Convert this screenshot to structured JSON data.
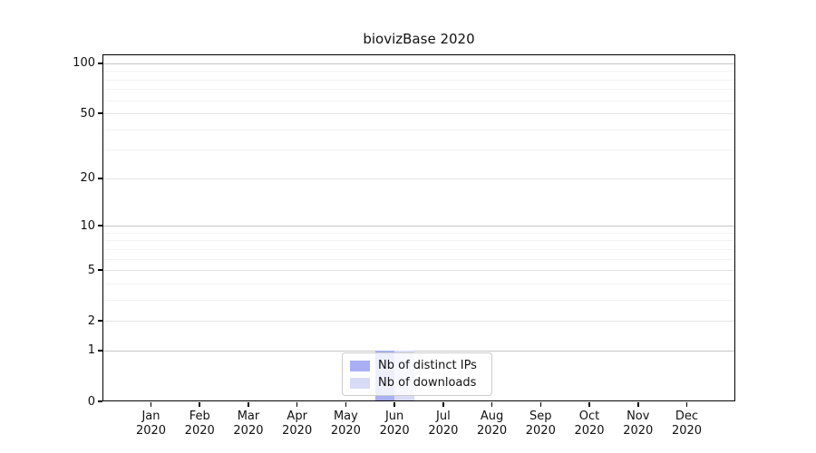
{
  "chart_data": {
    "type": "bar",
    "title": "biovizBase 2020",
    "categories": [
      "Jan",
      "Feb",
      "Mar",
      "Apr",
      "May",
      "Jun",
      "Jul",
      "Aug",
      "Sep",
      "Oct",
      "Nov",
      "Dec"
    ],
    "category_year": "2020",
    "series": [
      {
        "name": "Nb of distinct IPs",
        "color": "#a9aff2",
        "values": [
          0,
          0,
          0,
          0,
          0,
          1,
          0,
          0,
          0,
          0,
          0,
          0
        ]
      },
      {
        "name": "Nb of downloads",
        "color": "#d8dbf8",
        "values": [
          0,
          0,
          0,
          0,
          0,
          1,
          0,
          0,
          0,
          0,
          0,
          0
        ]
      }
    ],
    "y_axis": {
      "scale": "log1p",
      "major_ticks": [
        0,
        1,
        2,
        5,
        10,
        20,
        50,
        100
      ],
      "decade_gridlines": [
        1,
        10,
        100
      ],
      "mid_gridlines": [
        2,
        5,
        20,
        50
      ],
      "minor_gridlines": [
        3,
        4,
        6,
        7,
        8,
        9,
        30,
        40,
        60,
        70,
        80,
        90,
        110
      ],
      "max": 113
    },
    "x_axis": {
      "label_lines": 2
    },
    "grid": {
      "decade_color": "#c6c6c6",
      "mid_color": "#e3e3e3",
      "minor_color": "#f2f2f2"
    },
    "legend": {
      "position": "lower center"
    }
  }
}
